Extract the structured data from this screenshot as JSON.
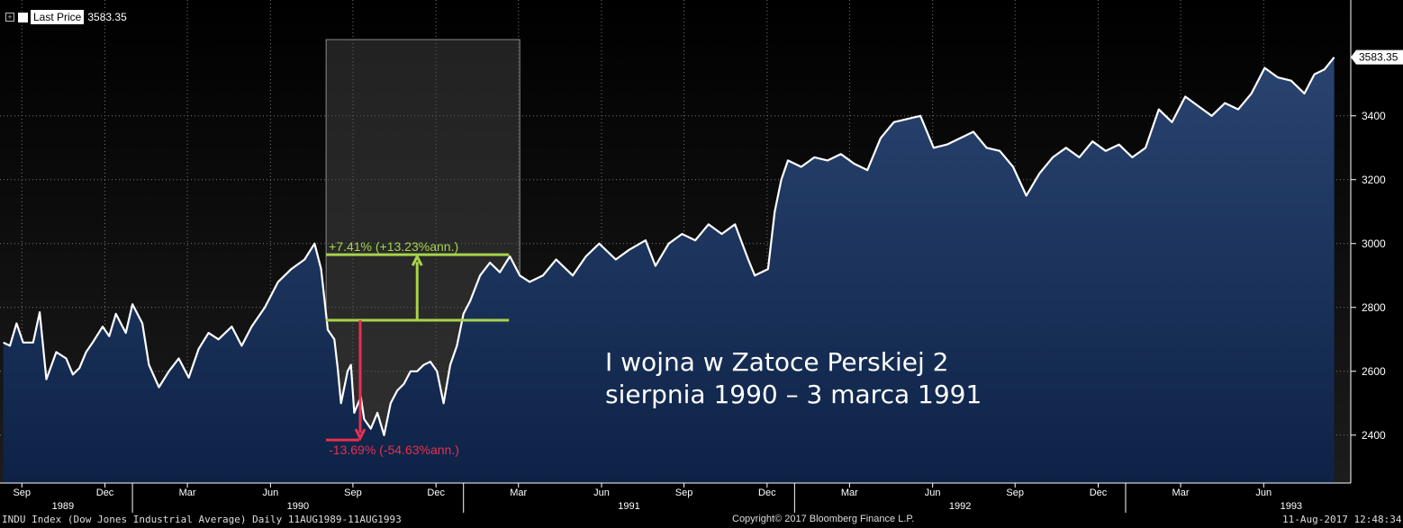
{
  "legend": {
    "expand_icon": "plus-box-icon",
    "series_label": "Last Price",
    "series_value": "3583.35"
  },
  "last_value_tag": "3583.35",
  "footer": {
    "left": "INDU Index (Dow Jones Industrial Average)  Daily 11AUG1989-11AUG1993",
    "center": "Copyright© 2017 Bloomberg Finance L.P.",
    "right": "11-Aug-2017 12:48:34"
  },
  "annotations": {
    "gain_label": "+7.41% (+13.23%ann.)",
    "loss_label": "-13.69% (-54.63%ann.)",
    "note_line1": "I wojna w Zatoce Perskiej 2",
    "note_line2": "sierpnia 1990 – 3 marca 1991"
  },
  "colors": {
    "background": "#000000",
    "plot_top": "#141414",
    "area_top": "#253d63",
    "area_bottom": "#0d2246",
    "line": "#ffffff",
    "gain": "#a8d34b",
    "loss": "#e8304f"
  },
  "chart_data": {
    "type": "area",
    "title": "",
    "xlabel": "",
    "ylabel": "",
    "ylim": [
      2250,
      3650
    ],
    "yticks": [
      2400,
      2600,
      2800,
      3000,
      3200,
      3400
    ],
    "grid": true,
    "legend_position": "top-left",
    "x_months": [
      {
        "t": 1989.666,
        "label": "Sep"
      },
      {
        "t": 1989.917,
        "label": "Dec"
      },
      {
        "t": 1990.166,
        "label": "Mar"
      },
      {
        "t": 1990.417,
        "label": "Jun"
      },
      {
        "t": 1990.666,
        "label": "Sep"
      },
      {
        "t": 1990.917,
        "label": "Dec"
      },
      {
        "t": 1991.166,
        "label": "Mar"
      },
      {
        "t": 1991.417,
        "label": "Jun"
      },
      {
        "t": 1991.666,
        "label": "Sep"
      },
      {
        "t": 1991.917,
        "label": "Dec"
      },
      {
        "t": 1992.166,
        "label": "Mar"
      },
      {
        "t": 1992.417,
        "label": "Jun"
      },
      {
        "t": 1992.666,
        "label": "Sep"
      },
      {
        "t": 1992.917,
        "label": "Dec"
      },
      {
        "t": 1993.166,
        "label": "Mar"
      },
      {
        "t": 1993.417,
        "label": "Jun"
      }
    ],
    "x_years": [
      {
        "t": 1989.79,
        "label": "1989"
      },
      {
        "t": 1990.5,
        "label": "1990"
      },
      {
        "t": 1991.5,
        "label": "1991"
      },
      {
        "t": 1992.5,
        "label": "1992"
      },
      {
        "t": 1993.5,
        "label": "1993"
      }
    ],
    "highlight_period": {
      "start": 1990.585,
      "end": 1991.17
    },
    "gain_measure": {
      "from": 2760,
      "to": 2965,
      "x_start": 1990.585,
      "x_end": 1991.17,
      "arrow_x": 1990.86
    },
    "loss_measure": {
      "from": 2760,
      "to": 2385,
      "x_start": 1990.585,
      "x_end": 1990.685,
      "arrow_x": 1990.68
    },
    "series": [
      {
        "name": "Last Price",
        "points": [
          [
            1989.61,
            2690
          ],
          [
            1989.63,
            2680
          ],
          [
            1989.65,
            2750
          ],
          [
            1989.67,
            2690
          ],
          [
            1989.7,
            2690
          ],
          [
            1989.72,
            2785
          ],
          [
            1989.74,
            2575
          ],
          [
            1989.77,
            2660
          ],
          [
            1989.8,
            2640
          ],
          [
            1989.82,
            2590
          ],
          [
            1989.84,
            2610
          ],
          [
            1989.86,
            2660
          ],
          [
            1989.88,
            2690
          ],
          [
            1989.91,
            2740
          ],
          [
            1989.93,
            2710
          ],
          [
            1989.95,
            2780
          ],
          [
            1989.98,
            2720
          ],
          [
            1990.0,
            2810
          ],
          [
            1990.03,
            2750
          ],
          [
            1990.05,
            2620
          ],
          [
            1990.08,
            2550
          ],
          [
            1990.11,
            2600
          ],
          [
            1990.14,
            2640
          ],
          [
            1990.17,
            2580
          ],
          [
            1990.2,
            2670
          ],
          [
            1990.23,
            2720
          ],
          [
            1990.26,
            2700
          ],
          [
            1990.3,
            2740
          ],
          [
            1990.33,
            2680
          ],
          [
            1990.36,
            2740
          ],
          [
            1990.4,
            2800
          ],
          [
            1990.44,
            2880
          ],
          [
            1990.48,
            2920
          ],
          [
            1990.52,
            2950
          ],
          [
            1990.55,
            3000
          ],
          [
            1990.57,
            2920
          ],
          [
            1990.59,
            2730
          ],
          [
            1990.61,
            2700
          ],
          [
            1990.62,
            2610
          ],
          [
            1990.63,
            2500
          ],
          [
            1990.65,
            2600
          ],
          [
            1990.66,
            2620
          ],
          [
            1990.67,
            2470
          ],
          [
            1990.69,
            2520
          ],
          [
            1990.7,
            2450
          ],
          [
            1990.72,
            2420
          ],
          [
            1990.74,
            2470
          ],
          [
            1990.76,
            2400
          ],
          [
            1990.78,
            2500
          ],
          [
            1990.8,
            2540
          ],
          [
            1990.82,
            2560
          ],
          [
            1990.84,
            2600
          ],
          [
            1990.86,
            2600
          ],
          [
            1990.88,
            2620
          ],
          [
            1990.9,
            2630
          ],
          [
            1990.92,
            2600
          ],
          [
            1990.94,
            2500
          ],
          [
            1990.96,
            2620
          ],
          [
            1990.98,
            2680
          ],
          [
            1991.0,
            2780
          ],
          [
            1991.02,
            2820
          ],
          [
            1991.05,
            2900
          ],
          [
            1991.08,
            2940
          ],
          [
            1991.11,
            2910
          ],
          [
            1991.14,
            2960
          ],
          [
            1991.17,
            2900
          ],
          [
            1991.2,
            2880
          ],
          [
            1991.24,
            2900
          ],
          [
            1991.28,
            2950
          ],
          [
            1991.33,
            2900
          ],
          [
            1991.37,
            2960
          ],
          [
            1991.41,
            3000
          ],
          [
            1991.46,
            2950
          ],
          [
            1991.5,
            2980
          ],
          [
            1991.55,
            3010
          ],
          [
            1991.58,
            2930
          ],
          [
            1991.62,
            3000
          ],
          [
            1991.66,
            3030
          ],
          [
            1991.7,
            3010
          ],
          [
            1991.74,
            3060
          ],
          [
            1991.78,
            3030
          ],
          [
            1991.82,
            3060
          ],
          [
            1991.86,
            2950
          ],
          [
            1991.88,
            2900
          ],
          [
            1991.92,
            2920
          ],
          [
            1991.94,
            3100
          ],
          [
            1991.96,
            3200
          ],
          [
            1991.98,
            3260
          ],
          [
            1992.02,
            3240
          ],
          [
            1992.06,
            3270
          ],
          [
            1992.1,
            3260
          ],
          [
            1992.14,
            3280
          ],
          [
            1992.18,
            3250
          ],
          [
            1992.22,
            3230
          ],
          [
            1992.26,
            3330
          ],
          [
            1992.3,
            3380
          ],
          [
            1992.34,
            3390
          ],
          [
            1992.38,
            3400
          ],
          [
            1992.42,
            3300
          ],
          [
            1992.46,
            3310
          ],
          [
            1992.5,
            3330
          ],
          [
            1992.54,
            3350
          ],
          [
            1992.58,
            3300
          ],
          [
            1992.62,
            3290
          ],
          [
            1992.66,
            3240
          ],
          [
            1992.7,
            3150
          ],
          [
            1992.74,
            3220
          ],
          [
            1992.78,
            3270
          ],
          [
            1992.82,
            3300
          ],
          [
            1992.86,
            3270
          ],
          [
            1992.9,
            3320
          ],
          [
            1992.94,
            3290
          ],
          [
            1992.98,
            3310
          ],
          [
            1993.02,
            3270
          ],
          [
            1993.06,
            3300
          ],
          [
            1993.1,
            3420
          ],
          [
            1993.14,
            3380
          ],
          [
            1993.18,
            3460
          ],
          [
            1993.22,
            3430
          ],
          [
            1993.26,
            3400
          ],
          [
            1993.3,
            3440
          ],
          [
            1993.34,
            3420
          ],
          [
            1993.38,
            3470
          ],
          [
            1993.42,
            3550
          ],
          [
            1993.46,
            3520
          ],
          [
            1993.5,
            3510
          ],
          [
            1993.54,
            3470
          ],
          [
            1993.57,
            3530
          ],
          [
            1993.6,
            3545
          ],
          [
            1993.63,
            3583.35
          ]
        ]
      }
    ]
  }
}
